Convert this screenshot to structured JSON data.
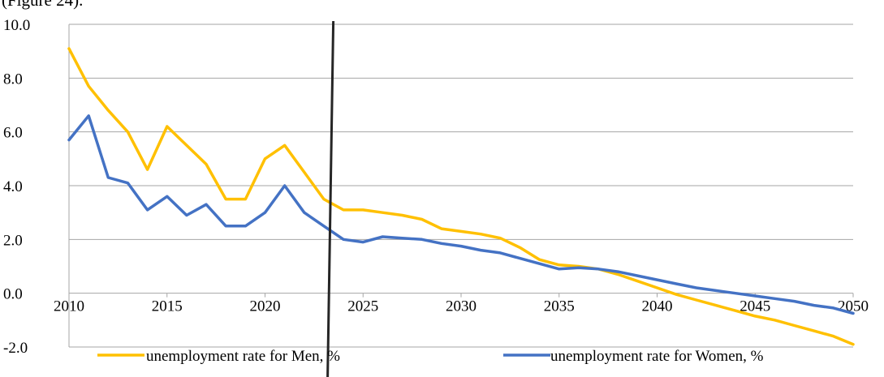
{
  "caption": "(Figure 24).",
  "chart_data": {
    "type": "line",
    "title": "",
    "xlabel": "",
    "ylabel": "",
    "xlim": [
      2010,
      2050
    ],
    "ylim": [
      -2.0,
      10.0
    ],
    "x_ticks": [
      "2010",
      "2015",
      "2020",
      "2025",
      "2030",
      "2035",
      "2040",
      "2045",
      "2050"
    ],
    "y_ticks": [
      "10.0",
      "8.0",
      "6.0",
      "4.0",
      "2.0",
      "0.0",
      "-2.0"
    ],
    "grid": true,
    "legend_position": "bottom",
    "marker_line_x": 2023.4,
    "x": [
      2010,
      2011,
      2012,
      2013,
      2014,
      2015,
      2016,
      2017,
      2018,
      2019,
      2020,
      2021,
      2022,
      2023,
      2024,
      2025,
      2026,
      2027,
      2028,
      2029,
      2030,
      2031,
      2032,
      2033,
      2034,
      2035,
      2036,
      2037,
      2038,
      2039,
      2040,
      2041,
      2042,
      2043,
      2044,
      2045,
      2046,
      2047,
      2048,
      2049,
      2050
    ],
    "series": [
      {
        "name": "unemployment rate for Men, %",
        "color": "#FFC000",
        "values": [
          9.1,
          7.7,
          6.8,
          6.0,
          4.6,
          6.2,
          5.5,
          4.8,
          3.5,
          3.5,
          5.0,
          5.5,
          4.5,
          3.5,
          3.1,
          3.1,
          3.0,
          2.9,
          2.75,
          2.4,
          2.3,
          2.2,
          2.05,
          1.7,
          1.25,
          1.05,
          1.0,
          0.9,
          0.7,
          0.45,
          0.2,
          -0.05,
          -0.25,
          -0.45,
          -0.65,
          -0.85,
          -1.0,
          -1.2,
          -1.4,
          -1.6,
          -1.9
        ]
      },
      {
        "name": "unemployment rate for Women, %",
        "color": "#4472C4",
        "values": [
          5.7,
          6.6,
          4.3,
          4.1,
          3.1,
          3.6,
          2.9,
          3.3,
          2.5,
          2.5,
          3.0,
          4.0,
          3.0,
          2.5,
          2.0,
          1.9,
          2.1,
          2.05,
          2.0,
          1.85,
          1.75,
          1.6,
          1.5,
          1.3,
          1.1,
          0.9,
          0.95,
          0.9,
          0.8,
          0.65,
          0.5,
          0.35,
          0.2,
          0.1,
          0.0,
          -0.1,
          -0.2,
          -0.3,
          -0.45,
          -0.55,
          -0.75
        ]
      }
    ]
  }
}
